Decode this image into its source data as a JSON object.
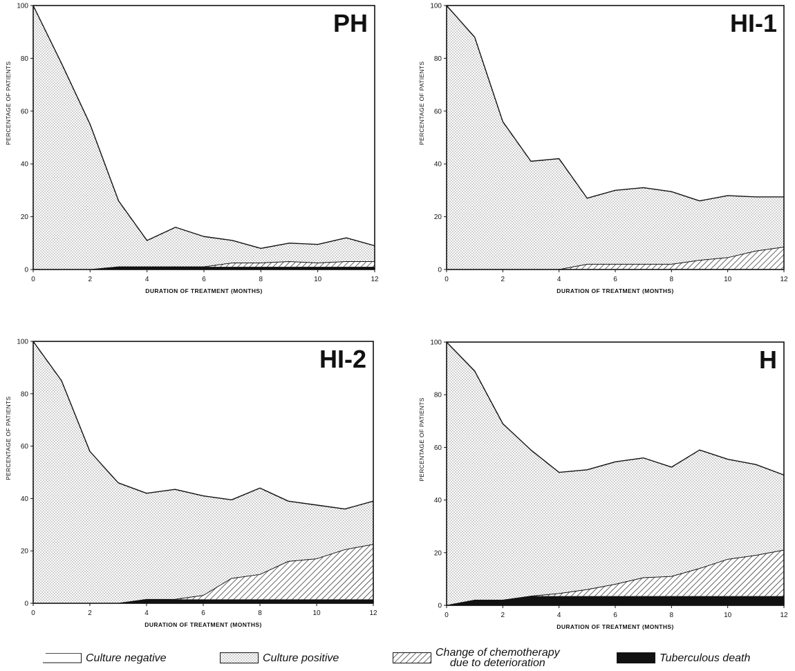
{
  "chart_data": [
    {
      "type": "area",
      "title": "PH",
      "xlabel": "DURATION OF TREATMENT (MONTHS)",
      "ylabel": "PERCENTAGE OF PATIENTS",
      "xlim": [
        0,
        12
      ],
      "ylim": [
        0,
        100
      ],
      "x_ticks": [
        0,
        2,
        4,
        6,
        8,
        10,
        12
      ],
      "y_ticks": [
        0,
        20,
        40,
        60,
        80,
        100
      ],
      "x": [
        0,
        1,
        2,
        3,
        4,
        5,
        6,
        7,
        8,
        9,
        10,
        11,
        12
      ],
      "series": [
        {
          "name": "Tuberculous death",
          "values": [
            0,
            0,
            0,
            1,
            1,
            1,
            1,
            1,
            1,
            1,
            1,
            1,
            1
          ]
        },
        {
          "name": "Change of chemotherapy due to deterioration",
          "values": [
            0,
            0,
            0,
            1,
            1,
            1,
            1,
            2.5,
            2.5,
            3,
            2.5,
            3,
            3
          ]
        },
        {
          "name": "Culture positive",
          "values": [
            100,
            78,
            55,
            26,
            11,
            16,
            12.5,
            11,
            8,
            10,
            9.5,
            12,
            9
          ]
        }
      ]
    },
    {
      "type": "area",
      "title": "HI-1",
      "xlabel": "DURATION OF TREATMENT (MONTHS)",
      "ylabel": "PERCENTAGE OF PATIENTS",
      "xlim": [
        0,
        12
      ],
      "ylim": [
        0,
        100
      ],
      "x_ticks": [
        0,
        2,
        4,
        6,
        8,
        10,
        12
      ],
      "y_ticks": [
        0,
        20,
        40,
        60,
        80,
        100
      ],
      "x": [
        0,
        1,
        2,
        3,
        4,
        5,
        6,
        7,
        8,
        9,
        10,
        11,
        12
      ],
      "series": [
        {
          "name": "Tuberculous death",
          "values": [
            0,
            0,
            0,
            0,
            0,
            0,
            0,
            0,
            0,
            0,
            0,
            0,
            0
          ]
        },
        {
          "name": "Change of chemotherapy due to deterioration",
          "values": [
            0,
            0,
            0,
            0,
            0,
            2,
            2,
            2,
            2,
            3.5,
            4.5,
            7,
            8.5
          ]
        },
        {
          "name": "Culture positive",
          "values": [
            100,
            88,
            56,
            41,
            42,
            27,
            30,
            31,
            29.5,
            26,
            28,
            27.5,
            27.5
          ]
        }
      ]
    },
    {
      "type": "area",
      "title": "HI-2",
      "xlabel": "DURATION OF TREATMENT (MONTHS)",
      "ylabel": "PERCENTAGE OF PATIENTS",
      "xlim": [
        0,
        12
      ],
      "ylim": [
        0,
        100
      ],
      "x_ticks": [
        0,
        2,
        4,
        6,
        8,
        10,
        12
      ],
      "y_ticks": [
        0,
        20,
        40,
        60,
        80,
        100
      ],
      "x": [
        0,
        1,
        2,
        3,
        4,
        5,
        6,
        7,
        8,
        9,
        10,
        11,
        12
      ],
      "series": [
        {
          "name": "Tuberculous death",
          "values": [
            0,
            0,
            0,
            0,
            1.5,
            1.5,
            1.5,
            1.5,
            1.5,
            1.5,
            1.5,
            1.5,
            1.5
          ]
        },
        {
          "name": "Change of chemotherapy due to deterioration",
          "values": [
            0,
            0,
            0,
            0,
            1.5,
            1.5,
            3,
            9.5,
            11,
            16,
            17,
            20.5,
            22.5
          ]
        },
        {
          "name": "Culture positive",
          "values": [
            100,
            85,
            58,
            46,
            42,
            43.5,
            41,
            39.5,
            44,
            39,
            37.5,
            36,
            39
          ]
        }
      ]
    },
    {
      "type": "area",
      "title": "H",
      "xlabel": "DURATION OF TREATMENT (MONTHS)",
      "ylabel": "PERCENTAGE OF PATIENTS",
      "xlim": [
        0,
        12
      ],
      "ylim": [
        0,
        100
      ],
      "x_ticks": [
        0,
        2,
        4,
        6,
        8,
        10,
        12
      ],
      "y_ticks": [
        0,
        20,
        40,
        60,
        80,
        100
      ],
      "x": [
        0,
        1,
        2,
        3,
        4,
        5,
        6,
        7,
        8,
        9,
        10,
        11,
        12
      ],
      "series": [
        {
          "name": "Tuberculous death",
          "values": [
            0,
            2,
            2,
            3.5,
            3.5,
            3.5,
            3.5,
            3.5,
            3.5,
            3.5,
            3.5,
            3.5,
            3.5
          ]
        },
        {
          "name": "Change of chemotherapy due to deterioration",
          "values": [
            0,
            2,
            2,
            3.5,
            4.5,
            6,
            8,
            10.5,
            11,
            14,
            17.5,
            19,
            21
          ]
        },
        {
          "name": "Culture positive",
          "values": [
            100,
            89,
            69,
            59,
            50.5,
            51.5,
            54.5,
            56,
            52.5,
            59,
            55.5,
            53.5,
            49.5
          ]
        }
      ]
    }
  ],
  "legend": {
    "items": [
      {
        "key": "negative",
        "lines": [
          "Culture negative"
        ]
      },
      {
        "key": "positive",
        "lines": [
          "Culture positive"
        ]
      },
      {
        "key": "change",
        "lines": [
          "Change of chemotherapy",
          "due to deterioration"
        ]
      },
      {
        "key": "death",
        "lines": [
          "Tuberculous death"
        ]
      }
    ]
  },
  "colors": {
    "ink": "#111111",
    "dots": "#555555",
    "background": "#ffffff"
  }
}
